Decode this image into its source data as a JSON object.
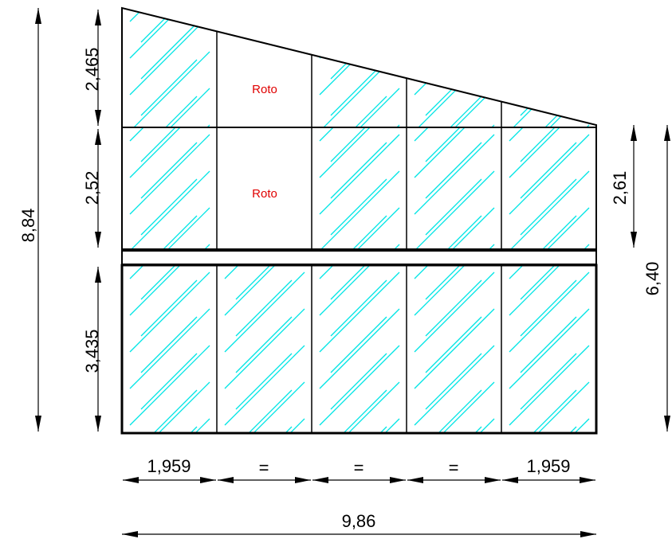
{
  "colors": {
    "glass_hatch": "#00e5e5",
    "frame": "#000000",
    "label": "#e00000"
  },
  "panels": {
    "top_row_labels": [
      "",
      "Roto",
      "",
      "",
      ""
    ],
    "middle_row_labels": [
      "",
      "Roto",
      "",
      "",
      ""
    ],
    "bottom_row_labels": [
      "",
      "",
      "",
      "",
      ""
    ]
  },
  "dimensions": {
    "left_top": "2,465",
    "left_middle": "2,52",
    "left_bottom": "3,435",
    "overall_height": "8,84",
    "right_upper": "2,61",
    "right_height": "6,40",
    "bottom_segments": [
      "1,959",
      "=",
      "=",
      "=",
      "1,959"
    ],
    "overall_width": "9,86"
  }
}
